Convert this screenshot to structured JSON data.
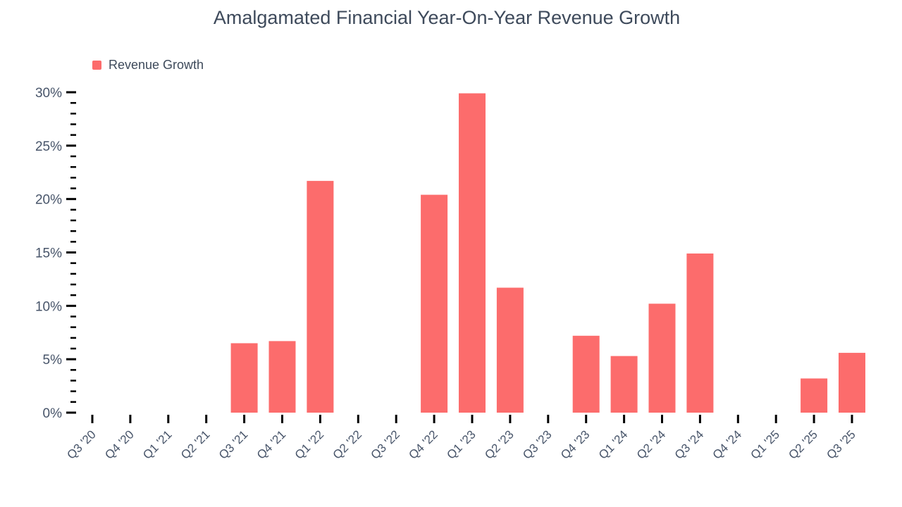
{
  "chart_data": {
    "type": "bar",
    "title": "Amalgamated Financial Year-On-Year Revenue Growth",
    "legend": [
      {
        "label": "Revenue Growth",
        "color": "#FC6C6C"
      }
    ],
    "legend_position": "top-left",
    "categories": [
      "Q3 '20",
      "Q4 '20",
      "Q1 '21",
      "Q2 '21",
      "Q3 '21",
      "Q4 '21",
      "Q1 '22",
      "Q2 '22",
      "Q3 '22",
      "Q4 '22",
      "Q1 '23",
      "Q2 '23",
      "Q3 '23",
      "Q4 '23",
      "Q1 '24",
      "Q2 '24",
      "Q3 '24",
      "Q4 '24",
      "Q1 '25",
      "Q2 '25",
      "Q3 '25"
    ],
    "series": [
      {
        "name": "Revenue Growth",
        "values": [
          null,
          null,
          null,
          null,
          6.5,
          6.7,
          21.7,
          null,
          null,
          20.4,
          29.9,
          11.7,
          null,
          7.2,
          5.3,
          10.2,
          14.9,
          null,
          null,
          3.2,
          5.6
        ]
      }
    ],
    "xlabel": "",
    "ylabel": "",
    "ylim": [
      0,
      30
    ],
    "y_axis": {
      "major_step": 5,
      "minor_step": 1,
      "tick_suffix": "%",
      "tick_labels": [
        "0%",
        "5%",
        "10%",
        "15%",
        "20%",
        "25%",
        "30%"
      ]
    },
    "grid": false,
    "colors": {
      "bar": "#FC6C6C",
      "title_text": "#3E4A5B",
      "axis_text": "#48556A",
      "tick": "#000000",
      "background": "#FFFFFF"
    }
  }
}
